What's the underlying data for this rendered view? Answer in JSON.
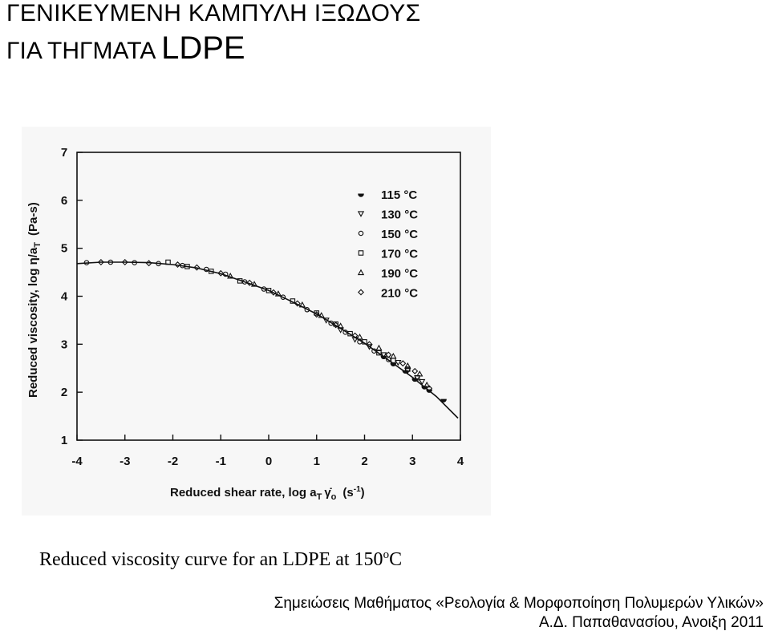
{
  "slide": {
    "title_line1": "ΓΕΝΙΚΕΥΜΕΝΗ ΚΑΜΠΥΛΗ ΙΞΩΔΟΥΣ",
    "title_line2_prefix": "ΓΙΑ ΤΗΓΜΑΤΑ",
    "title_line2_suffix": "LDPE",
    "caption_main": "Reduced viscosity curve for an LDPE at 150",
    "caption_sup": "o",
    "caption_unit": "C",
    "footer_line1": "Σημειώσεις Μαθήματος «Ρεολογία & Μορφοποίηση Πολυμερών Υλικών»",
    "footer_line2": "Α.Δ. Παπαθανασίου, Ανοιξη 2011"
  },
  "chart_data": {
    "type": "scatter",
    "xlabel_prefix": "Reduced shear rate,  log a",
    "xlabel_sub": "T",
    "xlabel_gamma": "γ̇",
    "xlabel_sub2": "o",
    "xlabel_unit": "(s",
    "xlabel_unit_sup": "-1",
    "xlabel_unit_close": ")",
    "ylabel_prefix": "Reduced viscosity,  log η/a",
    "ylabel_sub": "T",
    "ylabel_unit": "(Pa-s)",
    "xlim": [
      -4,
      4
    ],
    "ylim": [
      1,
      7
    ],
    "x_ticks": [
      -4,
      -3,
      -2,
      -1,
      0,
      1,
      2,
      3,
      4
    ],
    "y_ticks": [
      1,
      2,
      3,
      4,
      5,
      6,
      7
    ],
    "grid": false,
    "legend_position": "top-right",
    "curve_color": "#111111",
    "fit_curve": {
      "x": [
        -4.0,
        -3.5,
        -3.0,
        -2.5,
        -2.0,
        -1.5,
        -1.0,
        -0.5,
        0.0,
        0.5,
        1.0,
        1.5,
        2.0,
        2.5,
        3.0,
        3.5,
        3.95
      ],
      "y": [
        4.68,
        4.71,
        4.71,
        4.7,
        4.66,
        4.59,
        4.47,
        4.3,
        4.12,
        3.88,
        3.63,
        3.33,
        3.02,
        2.67,
        2.31,
        1.91,
        1.46
      ]
    },
    "series": [
      {
        "name": "115 °C",
        "marker": "half-circle",
        "x": [
          2.4,
          2.6,
          2.85,
          3.05,
          3.25,
          3.35,
          3.65
        ],
        "y": [
          2.75,
          2.6,
          2.45,
          2.28,
          2.12,
          2.05,
          1.85
        ]
      },
      {
        "name": "130 °C",
        "marker": "triangle-down",
        "x": [
          1.2,
          1.5,
          1.8,
          2.1,
          2.4,
          2.7,
          2.9,
          3.1,
          3.2
        ],
        "y": [
          3.5,
          3.3,
          3.1,
          2.95,
          2.78,
          2.62,
          2.45,
          2.3,
          2.22
        ]
      },
      {
        "name": "150 °C",
        "marker": "circle",
        "x": [
          -3.8,
          -3.3,
          -2.8,
          -2.3,
          -1.8,
          -1.3,
          -0.9,
          -0.5,
          -0.1,
          0.3,
          0.8,
          1.3,
          1.6,
          1.9,
          2.2,
          2.5
        ],
        "y": [
          4.7,
          4.71,
          4.7,
          4.68,
          4.64,
          4.56,
          4.46,
          4.3,
          4.15,
          3.98,
          3.72,
          3.44,
          3.25,
          3.05,
          2.86,
          2.68
        ]
      },
      {
        "name": "170 °C",
        "marker": "square",
        "x": [
          -2.1,
          -1.7,
          -1.2,
          -0.6,
          0.0,
          0.5,
          1.0,
          1.4,
          1.7,
          2.0,
          2.3,
          2.6,
          2.9,
          3.1
        ],
        "y": [
          4.71,
          4.62,
          4.52,
          4.32,
          4.12,
          3.9,
          3.65,
          3.42,
          3.22,
          3.05,
          2.82,
          2.66,
          2.48,
          2.3
        ]
      },
      {
        "name": "190 °C",
        "marker": "triangle-up",
        "x": [
          -0.8,
          -0.3,
          0.2,
          0.7,
          1.1,
          1.5,
          1.9,
          2.3,
          2.6,
          2.9,
          3.15,
          3.3
        ],
        "y": [
          4.42,
          4.25,
          4.05,
          3.82,
          3.6,
          3.38,
          3.15,
          2.92,
          2.75,
          2.55,
          2.38,
          2.15
        ]
      },
      {
        "name": "210 °C",
        "marker": "diamond",
        "x": [
          -3.5,
          -3.0,
          -2.5,
          -1.9,
          -1.5,
          -1.0,
          -0.4,
          0.1,
          0.6,
          1.0,
          1.4,
          1.8,
          2.1,
          2.5,
          2.8,
          3.05,
          3.35
        ],
        "y": [
          4.71,
          4.71,
          4.69,
          4.66,
          4.6,
          4.48,
          4.28,
          4.08,
          3.85,
          3.62,
          3.4,
          3.18,
          3.0,
          2.78,
          2.6,
          2.44,
          2.08
        ]
      }
    ]
  }
}
